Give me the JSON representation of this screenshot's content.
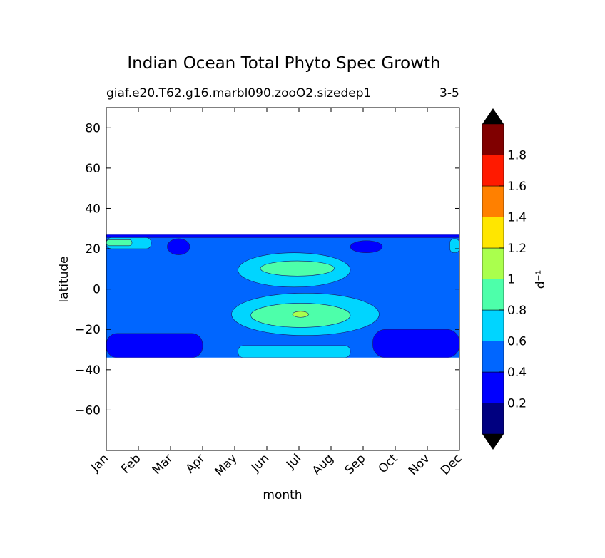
{
  "chart_data": {
    "type": "filled-contour",
    "title": "Indian Ocean Total Phyto Spec Growth",
    "subtitle": "giaf.e20.T62.g16.marbl090.zooO2.sizedep1",
    "season_label": "3-5",
    "xlabel": "month",
    "ylabel": "latitude",
    "x_categories": [
      "Jan",
      "Feb",
      "Mar",
      "Apr",
      "May",
      "Jun",
      "Jul",
      "Aug",
      "Sep",
      "Oct",
      "Nov",
      "Dec"
    ],
    "ylim": [
      -80,
      90
    ],
    "y_ticks": [
      80,
      60,
      40,
      20,
      0,
      -20,
      -40,
      -60
    ],
    "y_tick_labels": [
      "80",
      "60",
      "40",
      "20",
      "0",
      "−20",
      "−40",
      "−60"
    ],
    "data_lat_range": [
      -34,
      27
    ],
    "colorbar": {
      "label": "d⁻¹",
      "levels": [
        0,
        0.2,
        0.4,
        0.6,
        0.8,
        1.0,
        1.2,
        1.4,
        1.6,
        1.8,
        2.0
      ],
      "tick_values": [
        0.2,
        0.4,
        0.6,
        0.8,
        1.0,
        1.2,
        1.4,
        1.6,
        1.8
      ],
      "tick_labels": [
        "0.2",
        "0.4",
        "0.6",
        "0.8",
        "1",
        "1.2",
        "1.4",
        "1.6",
        "1.8"
      ],
      "colors": [
        "#000080",
        "#0000ff",
        "#0066ff",
        "#00d5ff",
        "#4dffaa",
        "#aaff4d",
        "#ffe600",
        "#ff8000",
        "#ff1a00",
        "#800000"
      ],
      "extend_color": "#000000",
      "extend": "both"
    },
    "background_level": 0.5,
    "features": [
      {
        "name": "north-edge-band",
        "level": 0.3,
        "month_range": [
          0,
          11
        ],
        "lat_range": [
          25.5,
          27
        ]
      },
      {
        "name": "north-arabian-cyan-patch",
        "level": 0.7,
        "month_range": [
          0,
          1.4
        ],
        "lat_range": [
          20,
          25.5
        ]
      },
      {
        "name": "north-arabian-green-patch",
        "level": 0.9,
        "month_range": [
          0,
          0.8
        ],
        "lat_range": [
          21.5,
          24.5
        ]
      },
      {
        "name": "north-east-cyan-patch",
        "level": 0.7,
        "month_range": [
          10.7,
          11
        ],
        "lat_range": [
          18,
          25
        ]
      },
      {
        "name": "mar-blue-blob",
        "level": 0.3,
        "month_range": [
          1.9,
          2.6
        ],
        "lat_range": [
          17,
          25
        ]
      },
      {
        "name": "sep-blue-blob",
        "level": 0.3,
        "month_range": [
          7.6,
          8.6
        ],
        "lat_range": [
          18,
          24
        ]
      },
      {
        "name": "winter-south-west-blue",
        "level": 0.3,
        "month_range": [
          0,
          3
        ],
        "lat_range": [
          -34,
          -22
        ]
      },
      {
        "name": "winter-south-east-blue",
        "level": 0.3,
        "month_range": [
          8.3,
          11
        ],
        "lat_range": [
          -34,
          -20
        ]
      },
      {
        "name": "mid-year-north-cyan",
        "level": 0.7,
        "month_range": [
          4.1,
          7.6
        ],
        "lat_range": [
          1,
          18
        ]
      },
      {
        "name": "mid-year-north-green",
        "level": 0.9,
        "month_range": [
          4.8,
          7.1
        ],
        "lat_range": [
          6.5,
          14
        ]
      },
      {
        "name": "mid-year-south-cyan",
        "level": 0.7,
        "month_range": [
          3.9,
          8.5
        ],
        "lat_range": [
          -23,
          -2
        ]
      },
      {
        "name": "mid-year-south-green",
        "level": 0.9,
        "month_range": [
          4.5,
          7.6
        ],
        "lat_range": [
          -19,
          -7
        ]
      },
      {
        "name": "jul-yellow-green-spot",
        "level": 1.1,
        "month_range": [
          5.8,
          6.3
        ],
        "lat_range": [
          -14,
          -11
        ]
      },
      {
        "name": "south-edge-cyan-band",
        "level": 0.7,
        "month_range": [
          4.1,
          7.6
        ],
        "lat_range": [
          -34,
          -28
        ]
      }
    ]
  }
}
